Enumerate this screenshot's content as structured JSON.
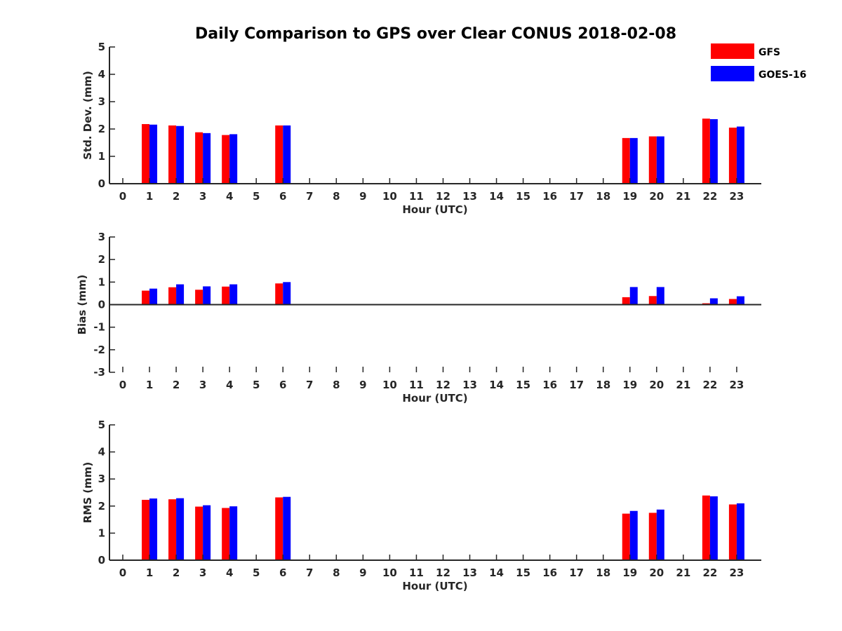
{
  "figure": {
    "title": "Daily Comparison to GPS over Clear CONUS 2018-02-08"
  },
  "legend": {
    "position": "top-right",
    "entries": [
      {
        "label": "GFS",
        "color": "#ff0000"
      },
      {
        "label": "GOES-16",
        "color": "#0000ff"
      }
    ]
  },
  "chart_data": [
    {
      "type": "bar",
      "title": "Daily Comparison to GPS over Clear CONUS 2018-02-08",
      "xlabel": "Hour (UTC)",
      "ylabel": "Std. Dev. (mm)",
      "ylim": [
        0,
        5
      ],
      "yticks": [
        "0",
        "1",
        "2",
        "3",
        "4",
        "5"
      ],
      "categories": [
        "0",
        "1",
        "2",
        "3",
        "4",
        "5",
        "6",
        "7",
        "8",
        "9",
        "10",
        "11",
        "12",
        "13",
        "14",
        "15",
        "16",
        "17",
        "18",
        "19",
        "20",
        "21",
        "22",
        "23"
      ],
      "series": [
        {
          "name": "GFS",
          "color": "#ff0000",
          "values": [
            null,
            2.18,
            2.13,
            1.88,
            1.78,
            null,
            2.13,
            null,
            null,
            null,
            null,
            null,
            null,
            null,
            null,
            null,
            null,
            null,
            null,
            1.67,
            1.73,
            null,
            2.38,
            2.05
          ]
        },
        {
          "name": "GOES-16",
          "color": "#0000ff",
          "values": [
            null,
            2.16,
            2.11,
            1.85,
            1.81,
            null,
            2.13,
            null,
            null,
            null,
            null,
            null,
            null,
            null,
            null,
            null,
            null,
            null,
            null,
            1.67,
            1.73,
            null,
            2.36,
            2.09
          ]
        }
      ]
    },
    {
      "type": "bar",
      "xlabel": "Hour (UTC)",
      "ylabel": "Bias (mm)",
      "ylim": [
        -3,
        3
      ],
      "yticks": [
        "-3",
        "-2",
        "-1",
        "0",
        "1",
        "2",
        "3"
      ],
      "categories": [
        "0",
        "1",
        "2",
        "3",
        "4",
        "5",
        "6",
        "7",
        "8",
        "9",
        "10",
        "11",
        "12",
        "13",
        "14",
        "15",
        "16",
        "17",
        "18",
        "19",
        "20",
        "21",
        "22",
        "23"
      ],
      "series": [
        {
          "name": "GFS",
          "color": "#ff0000",
          "values": [
            null,
            0.62,
            0.77,
            0.66,
            0.8,
            null,
            0.94,
            null,
            null,
            null,
            null,
            null,
            null,
            null,
            null,
            null,
            null,
            null,
            null,
            0.33,
            0.38,
            null,
            0.06,
            0.25
          ]
        },
        {
          "name": "GOES-16",
          "color": "#0000ff",
          "values": [
            null,
            0.71,
            0.9,
            0.81,
            0.9,
            null,
            1.0,
            null,
            null,
            null,
            null,
            null,
            null,
            null,
            null,
            null,
            null,
            null,
            null,
            0.78,
            0.78,
            null,
            0.28,
            0.37
          ]
        }
      ]
    },
    {
      "type": "bar",
      "xlabel": "Hour (UTC)",
      "ylabel": "RMS (mm)",
      "ylim": [
        0,
        5
      ],
      "yticks": [
        "0",
        "1",
        "2",
        "3",
        "4",
        "5"
      ],
      "categories": [
        "0",
        "1",
        "2",
        "3",
        "4",
        "5",
        "6",
        "7",
        "8",
        "9",
        "10",
        "11",
        "12",
        "13",
        "14",
        "15",
        "16",
        "17",
        "18",
        "19",
        "20",
        "21",
        "22",
        "23"
      ],
      "series": [
        {
          "name": "GFS",
          "color": "#ff0000",
          "values": [
            null,
            2.23,
            2.25,
            1.98,
            1.93,
            null,
            2.32,
            null,
            null,
            null,
            null,
            null,
            null,
            null,
            null,
            null,
            null,
            null,
            null,
            1.72,
            1.75,
            null,
            2.39,
            2.06
          ]
        },
        {
          "name": "GOES-16",
          "color": "#0000ff",
          "values": [
            null,
            2.28,
            2.29,
            2.03,
            1.99,
            null,
            2.34,
            null,
            null,
            null,
            null,
            null,
            null,
            null,
            null,
            null,
            null,
            null,
            null,
            1.82,
            1.87,
            null,
            2.36,
            2.1
          ]
        }
      ]
    }
  ]
}
